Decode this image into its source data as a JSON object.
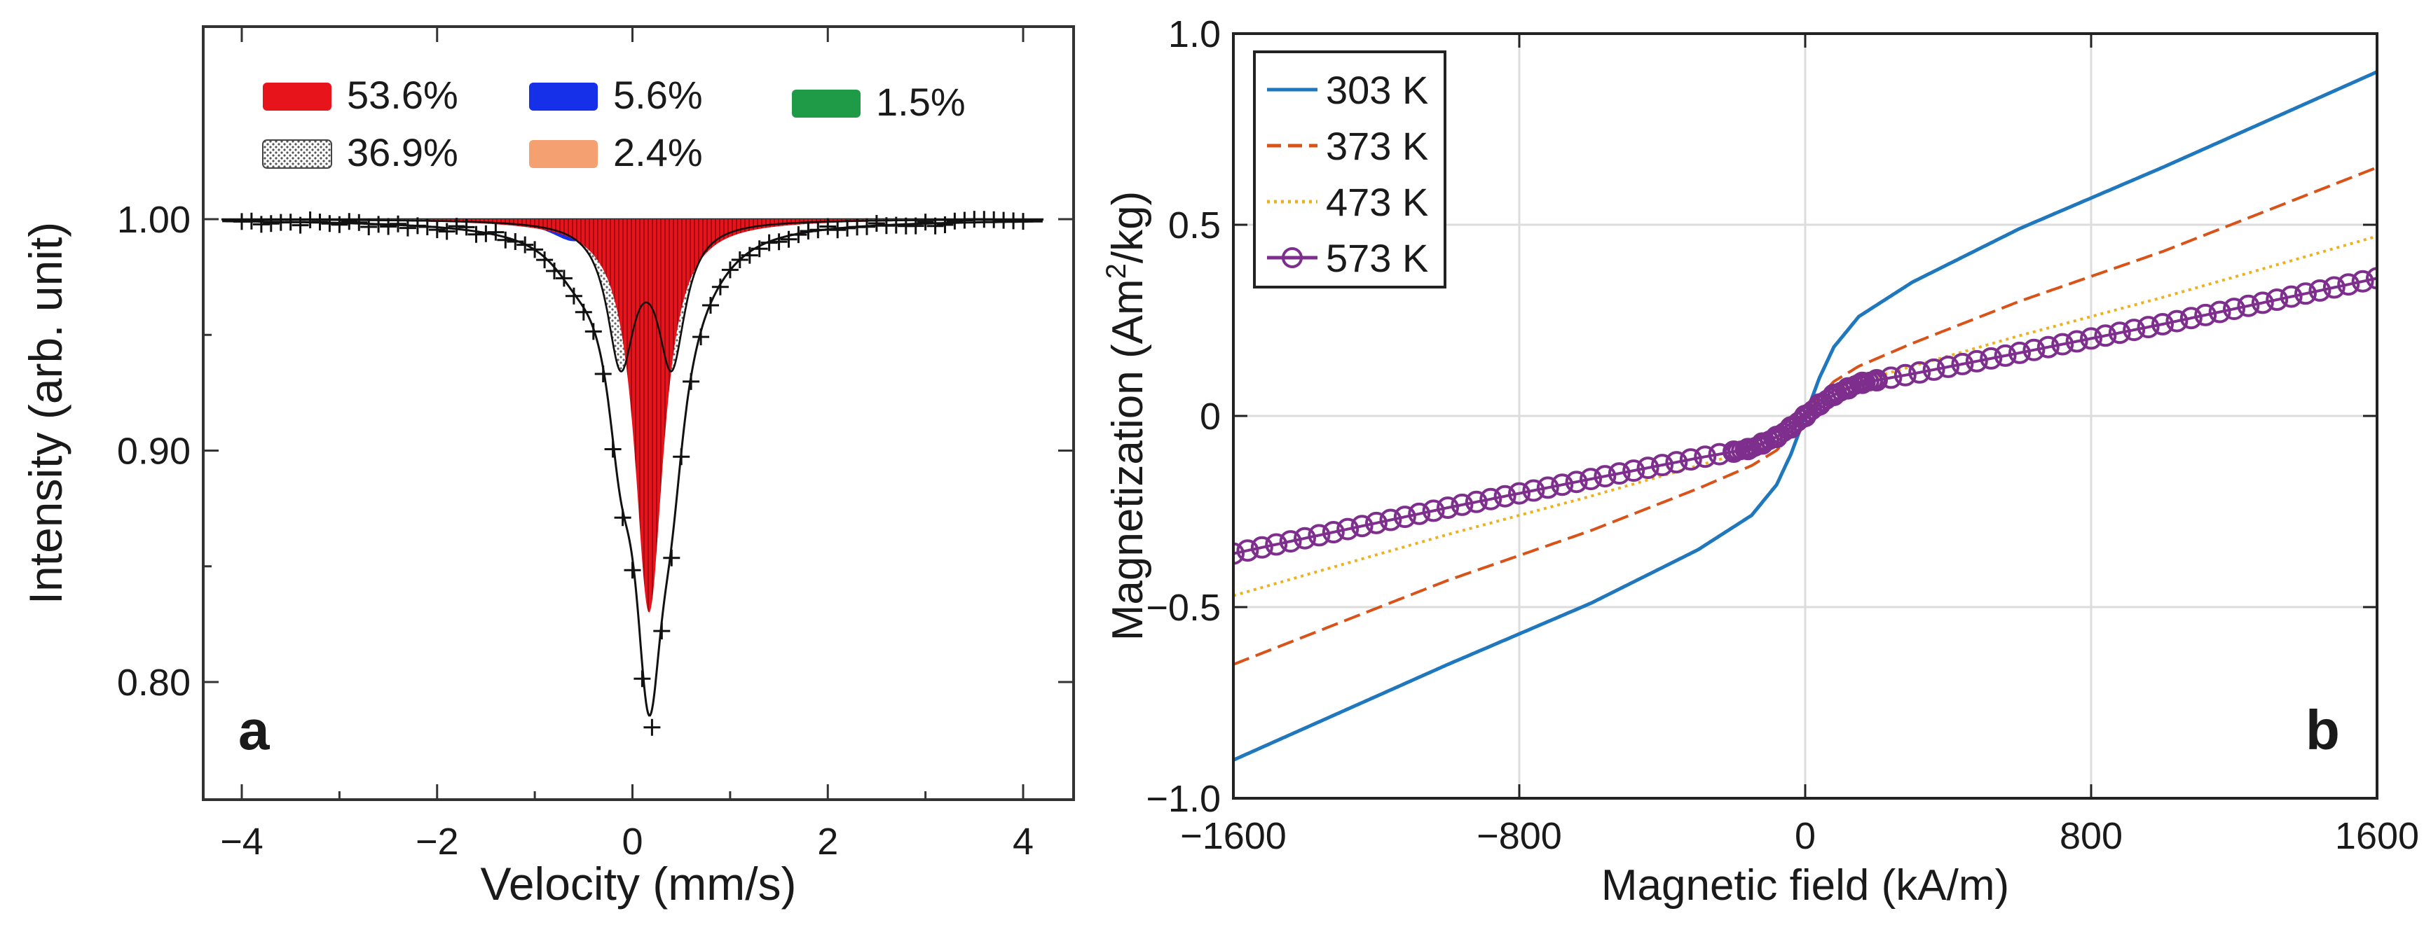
{
  "chart_data": [
    {
      "panel": "a",
      "type": "line",
      "title": "",
      "xlabel": "Velocity (mm/s)",
      "ylabel": "Intensity (arb. unit)",
      "xlim": [
        -4.4,
        4.4
      ],
      "ylim": [
        0.75,
        1.083
      ],
      "xticks": [
        -4,
        -2,
        0,
        2,
        4
      ],
      "xtick_labels": [
        "−4",
        "−2",
        "0",
        "2",
        "4"
      ],
      "yticks": [
        0.8,
        0.9,
        1.0
      ],
      "ytick_labels": [
        "0.80",
        "0.90",
        "1.00"
      ],
      "legend": [
        {
          "label": "53.6%",
          "color": "#e8141c",
          "pattern": "solid"
        },
        {
          "label": "36.9%",
          "color": "#bbbbbb",
          "pattern": "dots"
        },
        {
          "label": "5.6%",
          "color": "#1530e8",
          "pattern": "solid"
        },
        {
          "label": "2.4%",
          "color": "#f4a070",
          "pattern": "solid"
        },
        {
          "label": "1.5%",
          "color": "#1f9a46",
          "pattern": "solid"
        }
      ],
      "components": [
        {
          "name": "53.6%",
          "shape": "singlet",
          "center": 0.17,
          "depth": 0.17,
          "hwhm": 0.18
        },
        {
          "name": "36.9%",
          "shape": "doublet",
          "center": 0.14,
          "split": 0.52,
          "depth": 0.06,
          "hwhm": 0.17
        },
        {
          "name": "5.6%",
          "shape": "doublet",
          "center": 0.0,
          "split": 1.2,
          "depth": 0.009,
          "hwhm": 0.3
        },
        {
          "name": "2.4%",
          "shape": "doublet",
          "center": 0.2,
          "split": 1.3,
          "depth": 0.004,
          "hwhm": 0.35
        },
        {
          "name": "1.5%",
          "shape": "singlet",
          "center": 0.0,
          "depth": 0.002,
          "hwhm": 1.6
        }
      ],
      "data_marker": "+",
      "data_points": {
        "x_start": -4.0,
        "x_end": 4.0,
        "step": 0.1,
        "min_at": 0.16,
        "min_value": 0.78
      },
      "panel_label": "a"
    },
    {
      "panel": "b",
      "type": "line",
      "title": "",
      "xlabel": "Magnetic field (kA/m)",
      "ylabel": "Magnetization (Am²/kg)",
      "ylabel_parts": {
        "pre": "Magnetization (Am",
        "sup": "2",
        "post": "/kg)"
      },
      "xlim": [
        -1600,
        1600
      ],
      "ylim": [
        -1.0,
        1.0
      ],
      "xticks": [
        -1600,
        -800,
        0,
        800,
        1600
      ],
      "xtick_labels": [
        "−1600",
        "−800",
        "0",
        "800",
        "1600"
      ],
      "yticks": [
        -1.0,
        -0.5,
        0,
        0.5,
        1.0
      ],
      "ytick_labels": [
        "−1.0",
        "−0.5",
        "0",
        "0.5",
        "1.0"
      ],
      "grid": true,
      "legend_position": "top-left",
      "series": [
        {
          "name": "303 K",
          "color": "#1f77bd",
          "style": "solid",
          "x": [
            0,
            40,
            80,
            150,
            300,
            600,
            1000,
            1600
          ],
          "y": [
            0,
            0.1,
            0.18,
            0.26,
            0.35,
            0.49,
            0.65,
            0.9
          ]
        },
        {
          "name": "373 K",
          "color": "#d95319",
          "style": "dashed",
          "x": [
            0,
            40,
            80,
            150,
            300,
            600,
            1000,
            1600
          ],
          "y": [
            0,
            0.05,
            0.09,
            0.13,
            0.19,
            0.3,
            0.43,
            0.65
          ]
        },
        {
          "name": "473 K",
          "color": "#edb120",
          "style": "dotted",
          "x": [
            0,
            40,
            80,
            150,
            300,
            600,
            1000,
            1600
          ],
          "y": [
            0,
            0.035,
            0.06,
            0.09,
            0.13,
            0.21,
            0.31,
            0.47
          ]
        },
        {
          "name": "573 K",
          "color": "#7e2f8e",
          "style": "solid-circles",
          "x": [
            0,
            40,
            80,
            150,
            300,
            600,
            1000,
            1600
          ],
          "y": [
            0,
            0.03,
            0.055,
            0.085,
            0.11,
            0.165,
            0.24,
            0.36
          ]
        }
      ],
      "panel_label": "b"
    }
  ]
}
